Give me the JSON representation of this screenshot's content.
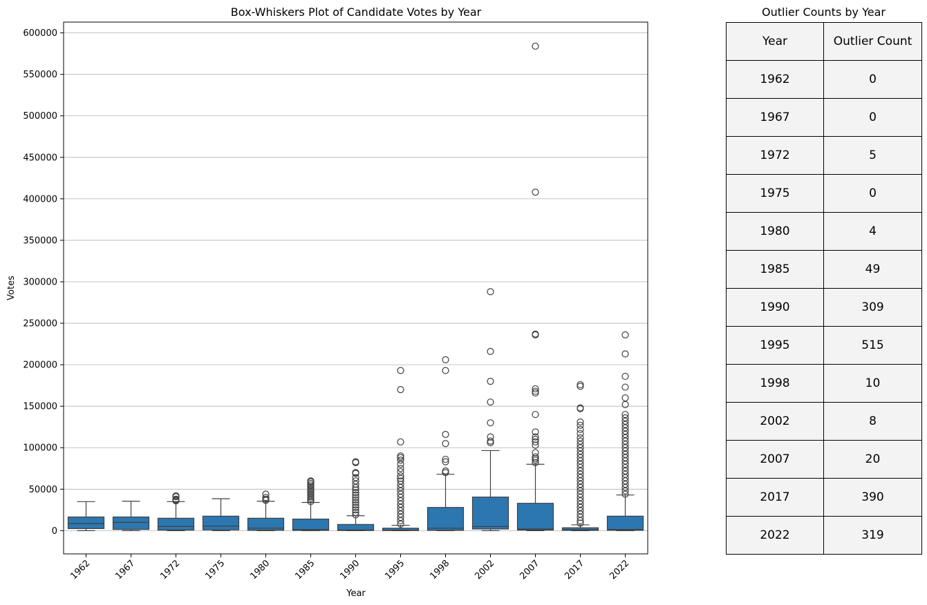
{
  "chart_data": [
    {
      "type": "box",
      "title": "Box-Whiskers Plot of Candidate Votes by Year",
      "xlabel": "Year",
      "ylabel": "Votes",
      "ylim": [
        -28000,
        613000
      ],
      "yticks": [
        0,
        50000,
        100000,
        150000,
        200000,
        250000,
        300000,
        350000,
        400000,
        450000,
        500000,
        550000,
        600000
      ],
      "grid": "y",
      "box_color": "#2d77b0",
      "categories": [
        "1962",
        "1967",
        "1972",
        "1975",
        "1980",
        "1985",
        "1990",
        "1995",
        "1998",
        "2002",
        "2007",
        "2017",
        "2022"
      ],
      "boxes": [
        {
          "year": "1962",
          "whislo": 0,
          "q1": 2500,
          "med": 8500,
          "q3": 16500,
          "whishi": 35000,
          "fliers": []
        },
        {
          "year": "1967",
          "whislo": 0,
          "q1": 1500,
          "med": 10000,
          "q3": 16500,
          "whishi": 35500,
          "fliers": []
        },
        {
          "year": "1972",
          "whislo": 0,
          "q1": 800,
          "med": 5000,
          "q3": 15000,
          "whishi": 35000,
          "fliers": [
            36000,
            37000,
            38000,
            41000,
            42000
          ]
        },
        {
          "year": "1975",
          "whislo": 0,
          "q1": 1000,
          "med": 5500,
          "q3": 17500,
          "whishi": 38500,
          "fliers": []
        },
        {
          "year": "1980",
          "whislo": 0,
          "q1": 500,
          "med": 3000,
          "q3": 15000,
          "whishi": 35500,
          "fliers": [
            36500,
            38000,
            40000,
            44000
          ]
        },
        {
          "year": "1985",
          "whislo": 0,
          "q1": 300,
          "med": 1500,
          "q3": 14000,
          "whishi": 34000,
          "fliers": [
            35000,
            37000,
            39000,
            41000,
            43000,
            45000,
            47000,
            49000,
            51000,
            53000,
            55000,
            57000,
            59000,
            60000
          ]
        },
        {
          "year": "1990",
          "whislo": 0,
          "q1": 200,
          "med": 800,
          "q3": 7500,
          "whishi": 18000,
          "fliers": [
            19000,
            22000,
            25000,
            28000,
            31000,
            34000,
            37000,
            40000,
            43000,
            46000,
            49000,
            52000,
            56000,
            60000,
            64000,
            69000,
            70000,
            82000,
            83000
          ]
        },
        {
          "year": "1995",
          "whislo": 0,
          "q1": 150,
          "med": 600,
          "q3": 3000,
          "whishi": 6500,
          "fliers": [
            8000,
            12000,
            16000,
            20000,
            24000,
            28000,
            32000,
            36000,
            40000,
            44000,
            48000,
            52000,
            56000,
            60000,
            63000,
            66000,
            71000,
            75000,
            80000,
            85000,
            88000,
            90000,
            107000,
            170000,
            193000
          ]
        },
        {
          "year": "1998",
          "whislo": 0,
          "q1": 400,
          "med": 3000,
          "q3": 28000,
          "whishi": 68000,
          "fliers": [
            70000,
            72000,
            83000,
            86000,
            105000,
            116000,
            193000,
            206000
          ]
        },
        {
          "year": "2002",
          "whislo": 0,
          "q1": 2000,
          "med": 5000,
          "q3": 40500,
          "whishi": 96500,
          "fliers": [
            106000,
            108000,
            113000,
            130000,
            155000,
            180000,
            216000,
            288000
          ]
        },
        {
          "year": "2007",
          "whislo": 0,
          "q1": 800,
          "med": 2000,
          "q3": 33000,
          "whishi": 80000,
          "fliers": [
            82000,
            85000,
            87000,
            89000,
            94000,
            103000,
            107000,
            110000,
            113000,
            119000,
            140000,
            166000,
            168000,
            171000,
            236000,
            237000,
            408000,
            584000
          ]
        },
        {
          "year": "2017",
          "whislo": 0,
          "q1": 400,
          "med": 1200,
          "q3": 3500,
          "whishi": 7000,
          "fliers": [
            9000,
            12000,
            16000,
            20000,
            24000,
            28000,
            32000,
            36000,
            40000,
            44000,
            48000,
            52000,
            56000,
            60000,
            64000,
            68000,
            72000,
            76000,
            80000,
            84000,
            88000,
            92000,
            96000,
            100000,
            104000,
            108000,
            112000,
            117000,
            122000,
            127000,
            131000,
            147000,
            148000,
            174000,
            176000
          ]
        },
        {
          "year": "2022",
          "whislo": 0,
          "q1": 500,
          "med": 1500,
          "q3": 17500,
          "whishi": 43000,
          "fliers": [
            44000,
            48000,
            52000,
            56000,
            60000,
            64000,
            68000,
            72000,
            76000,
            80000,
            84000,
            88000,
            92000,
            96000,
            100000,
            104000,
            108000,
            112000,
            116000,
            120000,
            124000,
            128000,
            132000,
            136000,
            140000,
            152000,
            160000,
            173000,
            186000,
            213000,
            236000
          ]
        }
      ]
    },
    {
      "type": "table",
      "title": "Outlier Counts by Year",
      "columns": [
        "Year",
        "Outlier Count"
      ],
      "rows": [
        [
          "1962",
          "0"
        ],
        [
          "1967",
          "0"
        ],
        [
          "1972",
          "5"
        ],
        [
          "1975",
          "0"
        ],
        [
          "1980",
          "4"
        ],
        [
          "1985",
          "49"
        ],
        [
          "1990",
          "309"
        ],
        [
          "1995",
          "515"
        ],
        [
          "1998",
          "10"
        ],
        [
          "2002",
          "8"
        ],
        [
          "2007",
          "20"
        ],
        [
          "2017",
          "390"
        ],
        [
          "2022",
          "319"
        ]
      ]
    }
  ]
}
